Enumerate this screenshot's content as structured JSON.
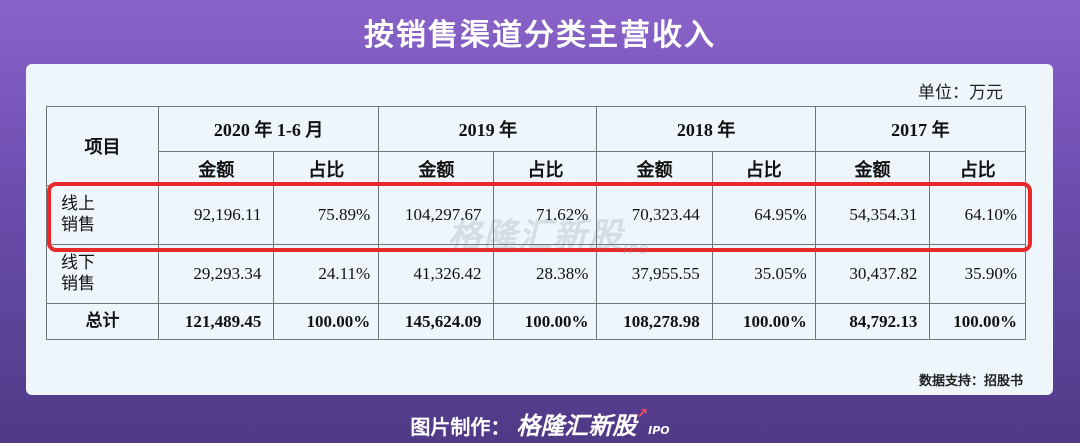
{
  "title": "按销售渠道分类主营收入",
  "unit": "单位：万元",
  "table": {
    "item_header": "项目",
    "periods": [
      "2020 年 1-6 月",
      "2019 年",
      "2018 年",
      "2017 年"
    ],
    "sub_headers": {
      "amount": "金额",
      "ratio": "占比"
    },
    "rows": [
      {
        "label_line1": "线上",
        "label_line2": "销售",
        "cells": [
          "92,196.11",
          "75.89%",
          "104,297.67",
          "71.62%",
          "70,323.44",
          "64.95%",
          "54,354.31",
          "64.10%"
        ]
      },
      {
        "label_line1": "线下",
        "label_line2": "销售",
        "cells": [
          "29,293.34",
          "24.11%",
          "41,326.42",
          "28.38%",
          "37,955.55",
          "35.05%",
          "30,437.82",
          "35.90%"
        ]
      },
      {
        "label_line1": "总计",
        "label_line2": "",
        "cells": [
          "121,489.45",
          "100.00%",
          "145,624.09",
          "100.00%",
          "108,278.98",
          "100.00%",
          "84,792.13",
          "100.00%"
        ]
      }
    ]
  },
  "watermark": {
    "text": "格隆汇新股",
    "sub": "IPO"
  },
  "source": "数据支持：招股书",
  "footer": {
    "label": "图片制作：",
    "brand": "格隆汇新股",
    "brand_sub": "IPO"
  },
  "colors": {
    "highlight": "#e8292a",
    "background_top": "#8a63c9",
    "background_bottom": "#4f3a86",
    "card": "#eef6fb"
  }
}
